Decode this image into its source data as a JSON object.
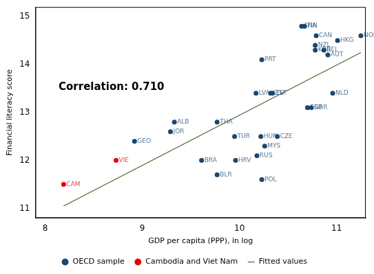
{
  "chart_data": {
    "type": "scatter",
    "annotation": "Correlation: 0.710",
    "x_label": "GDP per capita (PPP), in log",
    "y_label": "Financial literacy score",
    "xlim": [
      7.9,
      11.3
    ],
    "xticks": [
      8,
      9,
      10,
      11
    ],
    "ylim": [
      10.8,
      15.2
    ],
    "yticks": [
      11,
      12,
      13,
      14,
      15
    ],
    "grid": false,
    "legend": "bottom",
    "series": [
      {
        "name": "OECD sample",
        "color": "#1a476f",
        "marker": "circle",
        "labels": [
          "FRA",
          "FIN",
          "CAN",
          "NOR",
          "HKG",
          "NZL",
          "KOR",
          "BEL",
          "AUT",
          "PRT",
          "LVA",
          "LTU",
          "EST",
          "NLD",
          "ESP",
          "GBR",
          "ALB",
          "THA",
          "GEO",
          "JOR",
          "TUR",
          "HUN",
          "CZE",
          "MYS",
          "RUS",
          "HRV",
          "BRA",
          "BLR",
          "POL"
        ],
        "x": [
          10.64,
          10.67,
          10.79,
          11.25,
          11.01,
          10.78,
          10.78,
          10.87,
          10.91,
          10.23,
          10.17,
          10.32,
          10.34,
          10.96,
          10.7,
          10.74,
          9.33,
          9.77,
          8.92,
          9.29,
          9.95,
          10.22,
          10.39,
          10.26,
          10.18,
          9.96,
          9.61,
          9.77,
          10.23
        ],
        "values": [
          14.8,
          14.8,
          14.6,
          14.6,
          14.5,
          14.4,
          14.3,
          14.3,
          14.2,
          14.1,
          13.4,
          13.4,
          13.4,
          13.4,
          13.1,
          13.1,
          12.8,
          12.8,
          12.4,
          12.6,
          12.5,
          12.5,
          12.5,
          12.3,
          12.1,
          12.0,
          12.0,
          11.7,
          11.6
        ]
      },
      {
        "name": "Cambodia and Viet Nam",
        "color": "#e8000b",
        "marker": "circle",
        "labels": [
          "VIE",
          "CAM"
        ],
        "x": [
          8.73,
          8.19
        ],
        "values": [
          12.0,
          11.5
        ]
      },
      {
        "name": "Fitted values",
        "type": "line",
        "color": "#4f6228",
        "line_style": "solid",
        "x": [
          8.19,
          11.25
        ],
        "values": [
          11.05,
          14.25
        ]
      }
    ]
  }
}
